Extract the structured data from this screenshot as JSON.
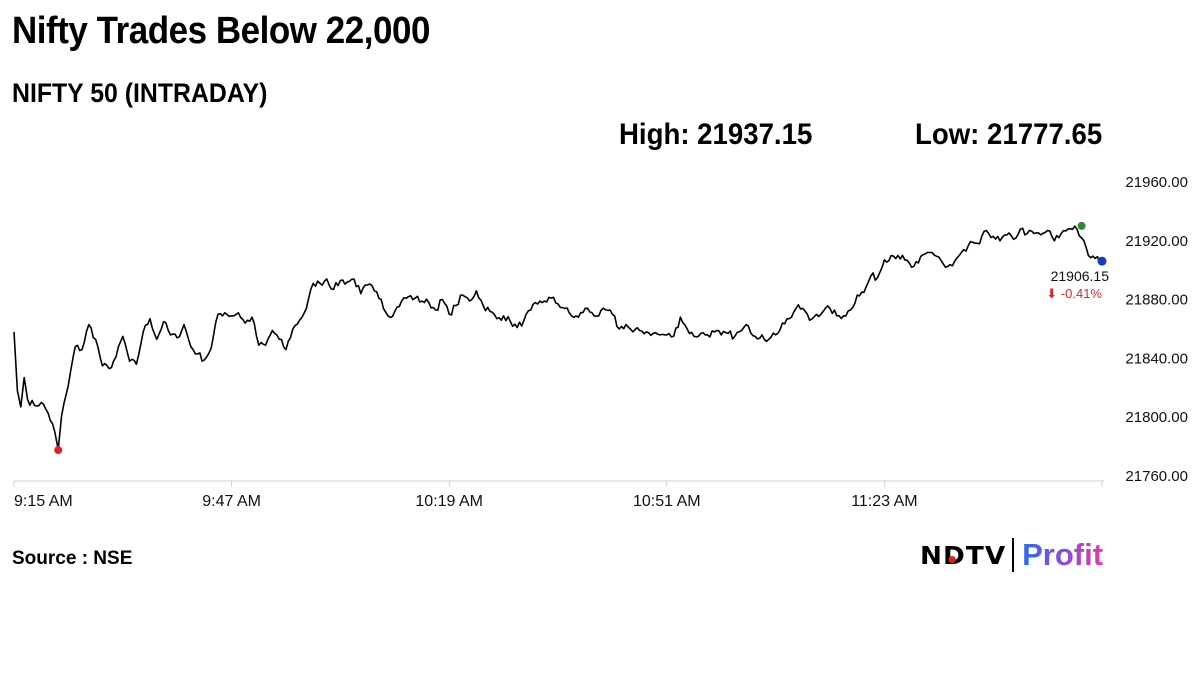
{
  "headline": "Nifty Trades Below 22,000",
  "subhead": "NIFTY 50 (INTRADAY)",
  "stats": {
    "high": "High: 21937.15",
    "low": "Low: 21777.65"
  },
  "source": "Source : NSE",
  "logo": {
    "brand": "NDTV",
    "product": "Profit"
  },
  "colors": {
    "line": "#000000",
    "low_marker": "#e2201f",
    "high_marker": "#2e8b2e",
    "last_marker": "#1f3bb3",
    "change": "#d42a2a",
    "axis": "#d0d0d0"
  },
  "chart_data": {
    "type": "line",
    "title": "NIFTY 50 (INTRADAY)",
    "xlabel": "",
    "ylabel": "",
    "x_tick_labels": [
      "9:15 AM",
      "9:47 AM",
      "10:19 AM",
      "10:51 AM",
      "11:23 AM"
    ],
    "y_tick_labels": [
      "21960.00",
      "21920.00",
      "21880.00",
      "21840.00",
      "21800.00",
      "21760.00"
    ],
    "ylim": [
      21760,
      21960
    ],
    "x_unit": "minutes since 9:15 AM",
    "xlim": [
      0,
      160
    ],
    "grid": false,
    "series": [
      {
        "name": "NIFTY 50",
        "x": [
          0,
          0.5,
          1,
          1.5,
          2,
          3,
          4,
          5,
          6,
          6.5,
          7,
          8,
          9,
          10,
          11,
          12,
          13,
          14,
          15,
          16,
          17,
          18,
          19,
          20,
          21,
          22,
          23,
          24,
          25,
          26,
          27,
          28,
          29,
          30,
          31,
          32,
          33,
          34,
          35,
          36,
          37,
          38,
          39,
          40,
          41,
          42,
          43,
          44,
          45,
          46,
          47,
          48,
          49,
          50,
          51,
          52,
          53,
          54,
          55,
          56,
          57,
          58,
          59,
          60,
          61,
          62,
          63,
          64,
          65,
          66,
          67,
          68,
          69,
          70,
          71,
          72,
          73,
          74,
          75,
          76,
          77,
          78,
          79,
          80,
          81,
          82,
          83,
          84,
          85,
          86,
          87,
          88,
          89,
          90,
          91,
          92,
          93,
          94,
          95,
          96,
          97,
          98,
          99,
          100,
          101,
          102,
          103,
          104,
          105,
          106,
          107,
          108,
          109,
          110,
          111,
          112,
          113,
          114,
          115,
          116,
          117,
          118,
          119,
          120,
          121,
          122,
          123,
          124,
          125,
          126,
          127,
          128,
          129,
          130,
          131,
          132,
          133,
          134,
          135,
          136,
          137,
          138,
          139,
          140,
          141,
          142,
          143,
          144,
          145,
          146,
          147,
          148,
          149,
          150,
          151,
          152,
          153,
          154,
          155,
          156,
          157,
          158,
          159,
          160
        ],
        "values": [
          21858,
          21818,
          21807,
          21827,
          21812,
          21808,
          21810,
          21803,
          21790,
          21778,
          21801,
          21822,
          21848,
          21846,
          21863,
          21853,
          21835,
          21833,
          21841,
          21855,
          21838,
          21836,
          21858,
          21867,
          21853,
          21865,
          21856,
          21854,
          21863,
          21848,
          21843,
          21839,
          21847,
          21870,
          21871,
          21869,
          21871,
          21864,
          21868,
          21849,
          21849,
          21859,
          21853,
          21846,
          21860,
          21866,
          21874,
          21891,
          21891,
          21894,
          21887,
          21893,
          21892,
          21894,
          21884,
          21890,
          21886,
          21880,
          21869,
          21872,
          21879,
          21882,
          21881,
          21879,
          21878,
          21873,
          21880,
          21870,
          21876,
          21883,
          21879,
          21886,
          21876,
          21872,
          21867,
          21869,
          21865,
          21861,
          21866,
          21873,
          21877,
          21879,
          21881,
          21877,
          21874,
          21869,
          21868,
          21874,
          21871,
          21869,
          21873,
          21870,
          21860,
          21863,
          21858,
          21859,
          21858,
          21857,
          21856,
          21856,
          21855,
          21868,
          21860,
          21855,
          21857,
          21856,
          21858,
          21856,
          21857,
          21855,
          21859,
          21862,
          21855,
          21856,
          21853,
          21856,
          21864,
          21867,
          21874,
          21874,
          21866,
          21870,
          21872,
          21874,
          21869,
          21869,
          21873,
          21883,
          21885,
          21896,
          21895,
          21907,
          21910,
          21910,
          21907,
          21902,
          21905,
          21911,
          21912,
          21909,
          21902,
          21903,
          21910,
          21913,
          21919,
          21918,
          21927,
          21923,
          21920,
          21924,
          21921,
          21928,
          21925,
          21925,
          21924,
          21927,
          21920,
          21925,
          21928,
          21930,
          21922,
          21910,
          21908,
          21906.15
        ]
      }
    ],
    "markers": {
      "low": 21777.65,
      "high": 21937.15,
      "last": 21906.15
    },
    "annotations": {
      "last_value": "21906.15",
      "change": "-0.41%"
    }
  }
}
